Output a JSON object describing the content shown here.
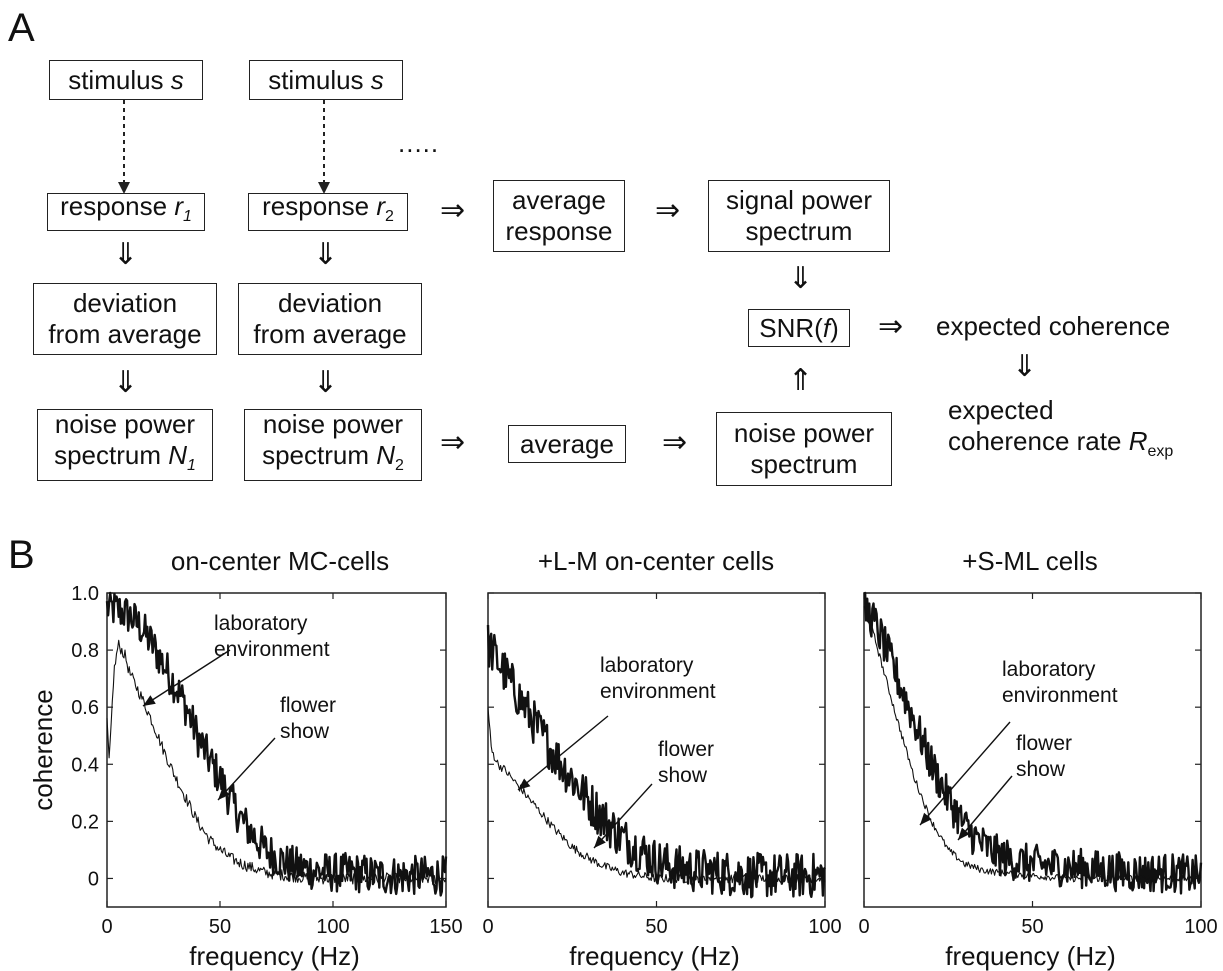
{
  "panel_a": {
    "letter": "A",
    "stimulus_1": "stimulus",
    "stimulus_2": "stimulus",
    "stimulus_var": "s",
    "dots": ".....",
    "response_word": "response",
    "response_var": "r",
    "response_1_sub": "1",
    "response_2_sub": "2",
    "deviation_line1": "deviation",
    "deviation_line2": "from average",
    "noise_line1": "noise power",
    "noise_line2": "spectrum",
    "noise_var": "N",
    "noise_1_sub": "1",
    "noise_2_sub": "2",
    "average_response_line1": "average",
    "average_response_line2": "response",
    "signal_line1": "signal power",
    "signal_line2": "spectrum",
    "snr_prefix": "SNR(",
    "snr_var": "f",
    "snr_suffix": ")",
    "expected_coherence": "expected coherence",
    "expected_rate_line1": "expected",
    "expected_rate_line2": "coherence rate",
    "rate_var": "R",
    "rate_sub": "exp",
    "average": "average",
    "noise_spec_line1": "noise power",
    "noise_spec_line2": "spectrum",
    "right_arrow": "⇒",
    "down_arrow": "⇓",
    "up_arrow": "⇑"
  },
  "panel_b": {
    "letter": "B",
    "ylabel": "coherence",
    "xlabel": "frequency (Hz)"
  },
  "chart_data": [
    {
      "type": "line",
      "title": "on-center MC-cells",
      "xlabel": "frequency (Hz)",
      "ylabel": "coherence",
      "xlim": [
        0,
        150
      ],
      "ylim": [
        -0.1,
        1.0
      ],
      "xticks": [
        0,
        50,
        100,
        150
      ],
      "yticks": [
        0,
        0.2,
        0.4,
        0.6,
        0.8,
        1.0
      ],
      "ytick_labels": [
        "0",
        "0.2",
        "0.4",
        "0.6",
        "0.8",
        "1.0"
      ],
      "annotations": [
        {
          "line1": "laboratory",
          "line2": "environment"
        },
        {
          "line1": "flower",
          "line2": "show"
        }
      ],
      "series": [
        {
          "x": [
            0,
            5,
            10,
            15,
            20,
            25,
            30,
            35,
            40,
            45,
            50,
            55,
            60,
            65,
            70,
            80,
            90,
            100,
            110,
            120,
            130,
            140,
            150
          ],
          "y": [
            0.95,
            0.94,
            0.92,
            0.88,
            0.82,
            0.75,
            0.68,
            0.6,
            0.5,
            0.42,
            0.35,
            0.27,
            0.2,
            0.15,
            0.1,
            0.05,
            0.03,
            0.02,
            0.02,
            0.01,
            0.01,
            0.01,
            0.01
          ],
          "noise": 0.07,
          "thick": true
        },
        {
          "x": [
            0,
            1,
            3,
            5,
            8,
            10,
            15,
            20,
            25,
            30,
            35,
            40,
            45,
            50,
            55,
            60,
            70,
            80,
            90,
            100,
            120,
            150
          ],
          "y": [
            0.55,
            0.4,
            0.72,
            0.82,
            0.78,
            0.72,
            0.64,
            0.55,
            0.45,
            0.36,
            0.28,
            0.2,
            0.14,
            0.1,
            0.07,
            0.05,
            0.02,
            0.01,
            0.0,
            0.0,
            0.0,
            0.0
          ],
          "noise": 0.02,
          "thick": false
        }
      ]
    },
    {
      "type": "line",
      "title": "+L-M on-center cells",
      "xlabel": "frequency (Hz)",
      "xlim": [
        0,
        100
      ],
      "ylim": [
        -0.1,
        1.0
      ],
      "xticks": [
        0,
        50,
        100
      ],
      "annotations": [
        {
          "line1": "laboratory",
          "line2": "environment"
        },
        {
          "line1": "flower",
          "line2": "show"
        }
      ],
      "series": [
        {
          "x": [
            0,
            3,
            6,
            10,
            15,
            20,
            25,
            30,
            35,
            40,
            45,
            50,
            55,
            60,
            70,
            80,
            90,
            100
          ],
          "y": [
            0.82,
            0.76,
            0.7,
            0.62,
            0.52,
            0.43,
            0.35,
            0.27,
            0.2,
            0.14,
            0.1,
            0.06,
            0.04,
            0.03,
            0.02,
            0.01,
            0.01,
            0.01
          ],
          "noise": 0.08,
          "thick": true
        },
        {
          "x": [
            0,
            1,
            3,
            5,
            10,
            15,
            20,
            25,
            30,
            35,
            40,
            45,
            50,
            60,
            70,
            80,
            90,
            100
          ],
          "y": [
            0.6,
            0.45,
            0.4,
            0.38,
            0.31,
            0.24,
            0.17,
            0.11,
            0.07,
            0.04,
            0.02,
            0.01,
            0.0,
            0.0,
            0.0,
            0.0,
            0.0,
            0.0
          ],
          "noise": 0.015,
          "thick": false
        }
      ]
    },
    {
      "type": "line",
      "title": "+S-ML cells",
      "xlabel": "frequency (Hz)",
      "xlim": [
        0,
        100
      ],
      "ylim": [
        -0.1,
        1.0
      ],
      "xticks": [
        0,
        50,
        100
      ],
      "annotations": [
        {
          "line1": "laboratory",
          "line2": "environment"
        },
        {
          "line1": "flower",
          "line2": "show"
        }
      ],
      "series": [
        {
          "x": [
            0,
            3,
            6,
            10,
            15,
            20,
            25,
            30,
            35,
            40,
            45,
            50,
            60,
            70,
            80,
            90,
            100
          ],
          "y": [
            0.95,
            0.9,
            0.82,
            0.7,
            0.55,
            0.4,
            0.28,
            0.18,
            0.12,
            0.08,
            0.06,
            0.05,
            0.04,
            0.03,
            0.02,
            0.02,
            0.01
          ],
          "noise": 0.07,
          "thick": true
        },
        {
          "x": [
            0,
            3,
            6,
            10,
            15,
            20,
            25,
            30,
            35,
            40,
            50,
            60,
            70,
            80,
            90,
            100
          ],
          "y": [
            0.95,
            0.85,
            0.72,
            0.55,
            0.35,
            0.2,
            0.1,
            0.05,
            0.03,
            0.02,
            0.01,
            0.0,
            0.0,
            0.0,
            0.0,
            0.0
          ],
          "noise": 0.012,
          "thick": false
        }
      ]
    }
  ]
}
